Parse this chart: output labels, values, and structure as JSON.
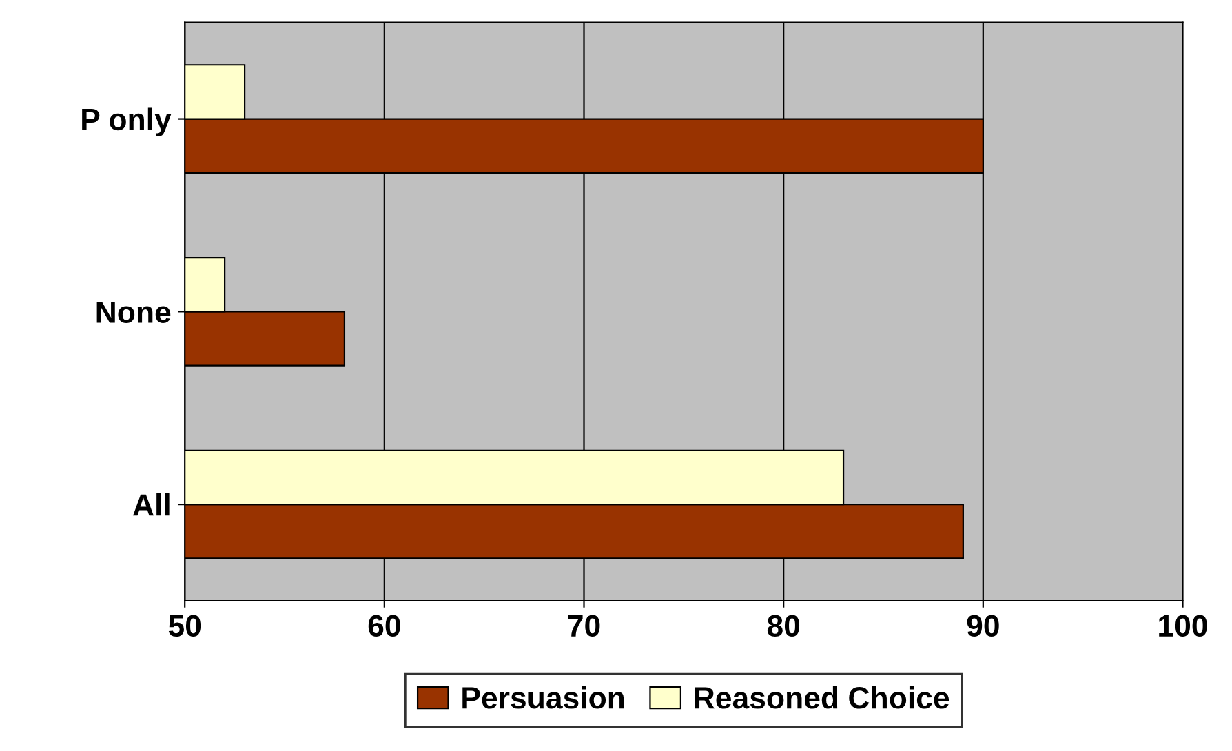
{
  "chart_data": {
    "type": "bar",
    "orientation": "horizontal",
    "categories": [
      "P only",
      "None",
      "All"
    ],
    "series": [
      {
        "name": "Persuasion",
        "color": "#993300",
        "values": [
          90,
          58,
          89
        ]
      },
      {
        "name": "Reasoned Choice",
        "color": "#ffffcc",
        "values": [
          53,
          52,
          83
        ]
      }
    ],
    "xlim": [
      50,
      100
    ],
    "xticks": [
      50,
      60,
      70,
      80,
      90,
      100
    ],
    "grid": "x",
    "legend": "bottom"
  }
}
